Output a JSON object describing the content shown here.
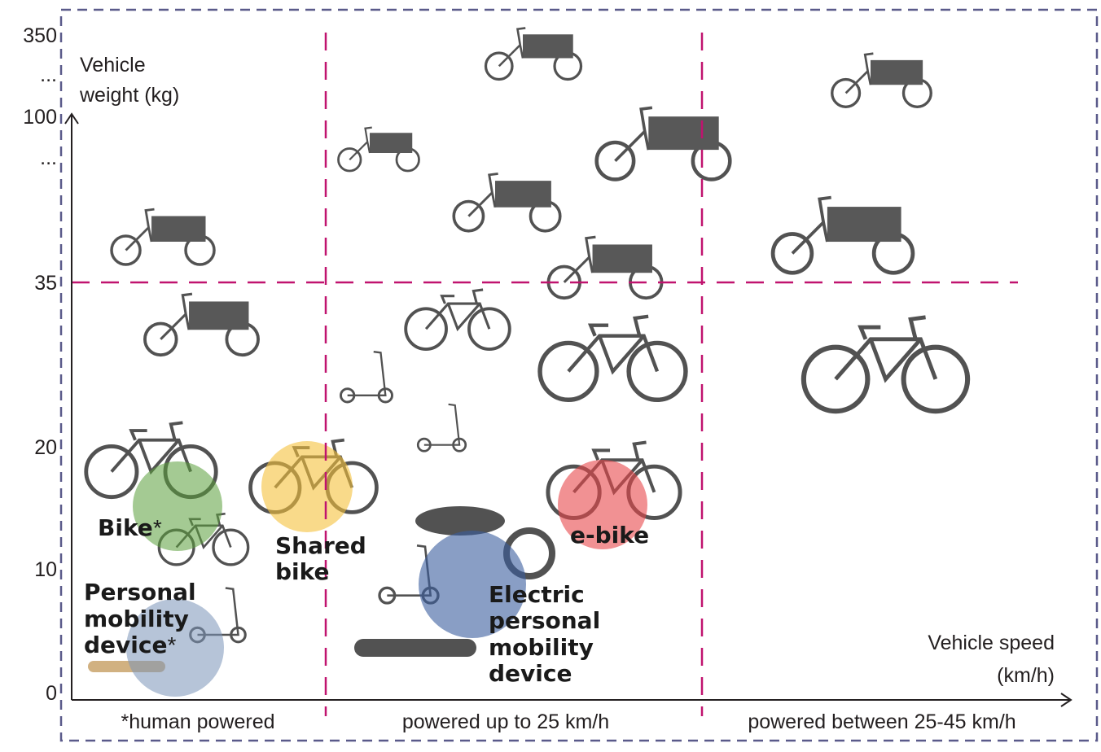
{
  "y_axis": {
    "title": [
      "Vehicle",
      "weight (kg)"
    ],
    "labels": [
      "350",
      "...",
      "100",
      "...",
      "35",
      "20",
      "10",
      "0"
    ]
  },
  "x_axis": {
    "title": [
      "Vehicle speed",
      "(km/h)"
    ]
  },
  "zones": [
    "*human powered",
    "powered up to 25 km/h",
    "powered between 25-45 km/h"
  ],
  "clusters": [
    {
      "lines": [
        "Bike"
      ],
      "note": "*"
    },
    {
      "lines": [
        "Shared",
        "bike"
      ]
    },
    {
      "lines": [
        "e-bike"
      ]
    },
    {
      "lines": [
        "Personal",
        "mobility",
        "device"
      ],
      "note": "*"
    },
    {
      "lines": [
        "Electric",
        "personal",
        "mobility",
        "device"
      ]
    }
  ]
}
